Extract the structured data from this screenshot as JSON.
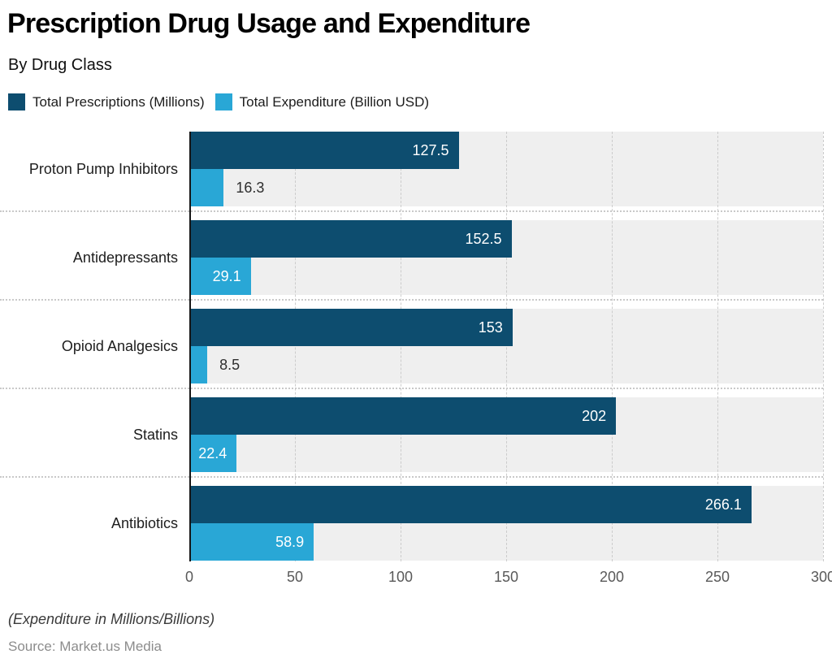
{
  "header": {
    "title": "Prescription Drug Usage and Expenditure",
    "subtitle": "By Drug Class"
  },
  "legend": [
    {
      "label": "Total Prescriptions (Millions)",
      "color": "#0d4d6f"
    },
    {
      "label": "Total Expenditure (Billion USD)",
      "color": "#29a7d6"
    }
  ],
  "chart_data": {
    "type": "bar",
    "orientation": "horizontal",
    "title": "Prescription Drug Usage and Expenditure",
    "subtitle": "By Drug Class",
    "categories": [
      "Proton Pump Inhibitors",
      "Antidepressants",
      "Opioid Analgesics",
      "Statins",
      "Antibiotics"
    ],
    "series": [
      {
        "name": "Total Prescriptions (Millions)",
        "color": "#0d4d6f",
        "values": [
          127.5,
          152.5,
          153,
          202,
          266.1
        ]
      },
      {
        "name": "Total Expenditure (Billion USD)",
        "color": "#29a7d6",
        "values": [
          16.3,
          29.1,
          8.5,
          22.4,
          58.9
        ]
      }
    ],
    "xlim": [
      0,
      300
    ],
    "x_ticks": [
      0,
      50,
      100,
      150,
      200,
      250,
      300
    ],
    "grid": "vertical-dashed",
    "row_background": "#efefef",
    "legend_position": "top-left",
    "value_labels": "on"
  },
  "footer": {
    "footnote": "(Expenditure in Millions/Billions)",
    "source": "Source: Market.us Media"
  }
}
